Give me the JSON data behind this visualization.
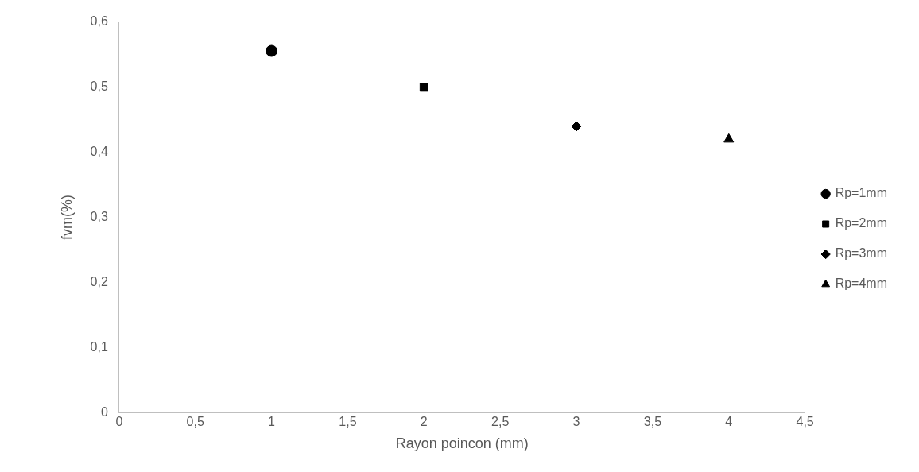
{
  "chart_data": {
    "type": "scatter",
    "xlabel": "Rayon poincon (mm)",
    "ylabel": "fvm(%)",
    "xlim": [
      0,
      4.5
    ],
    "xticks": [
      0,
      {
        "value": 0.5,
        "label": "0,5"
      },
      1,
      {
        "value": 1.5,
        "label": "1,5"
      },
      2,
      {
        "value": 2.5,
        "label": "2,5"
      },
      3,
      {
        "value": 3.5,
        "label": "3,5"
      },
      4,
      {
        "value": 4.5,
        "label": "4,5"
      }
    ],
    "ylim": [
      0,
      0.6
    ],
    "yticks": [
      0,
      {
        "value": 0.1,
        "label": "0,1"
      },
      {
        "value": 0.2,
        "label": "0,2"
      },
      {
        "value": 0.3,
        "label": "0,3"
      },
      {
        "value": 0.4,
        "label": "0,4"
      },
      {
        "value": 0.5,
        "label": "0,5"
      },
      {
        "value": 0.6,
        "label": "0,6"
      }
    ],
    "grid": false,
    "legend": "right",
    "series": [
      {
        "name": "Rp=1mm",
        "color": "#000000",
        "marker": "circle",
        "x": [
          1
        ],
        "values": [
          0.556
        ]
      },
      {
        "name": "Rp=2mm",
        "color": "#000000",
        "marker": "square",
        "x": [
          2
        ],
        "values": [
          0.5
        ]
      },
      {
        "name": "Rp=3mm",
        "color": "#000000",
        "marker": "diamond",
        "x": [
          3
        ],
        "values": [
          0.44
        ]
      },
      {
        "name": "Rp=4mm",
        "color": "#000000",
        "marker": "triangle",
        "x": [
          4
        ],
        "values": [
          0.42
        ]
      }
    ]
  }
}
